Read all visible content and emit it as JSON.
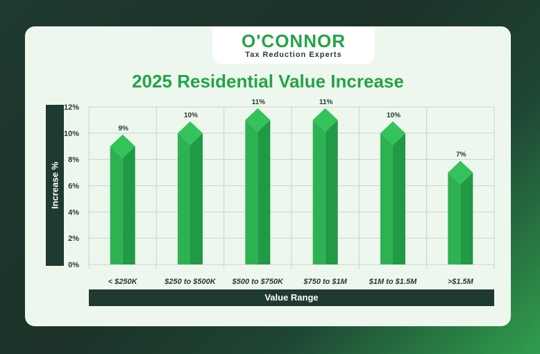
{
  "brand": {
    "logo_text": "O'CONNOR",
    "tagline": "Tax Reduction Experts"
  },
  "colors": {
    "background_dark": "#1f3a31",
    "card": "#eef7ee",
    "accent_green": "#22a447",
    "bar_front": "#2eb152",
    "bar_side": "#209a44",
    "bar_top": "#34c35b"
  },
  "chart_data": {
    "type": "bar",
    "title": "2025 Residential Value Increase",
    "xlabel": "Value Range",
    "ylabel": "Increase %",
    "categories": [
      "< $250K",
      "$250 to $500K",
      "$500 to $750K",
      "$750 to $1M",
      "$1M to $1.5M",
      ">$1.5M"
    ],
    "values": [
      9,
      10,
      11,
      11,
      10,
      7
    ],
    "data_labels": [
      "9%",
      "10%",
      "11%",
      "11%",
      "10%",
      "7%"
    ],
    "ylim": [
      0,
      12
    ],
    "yticks": [
      0,
      2,
      4,
      6,
      8,
      10,
      12
    ],
    "ytick_labels": [
      "0%",
      "2%",
      "4%",
      "6%",
      "8%",
      "10%",
      "12%"
    ],
    "grid": true,
    "legend": "none"
  }
}
